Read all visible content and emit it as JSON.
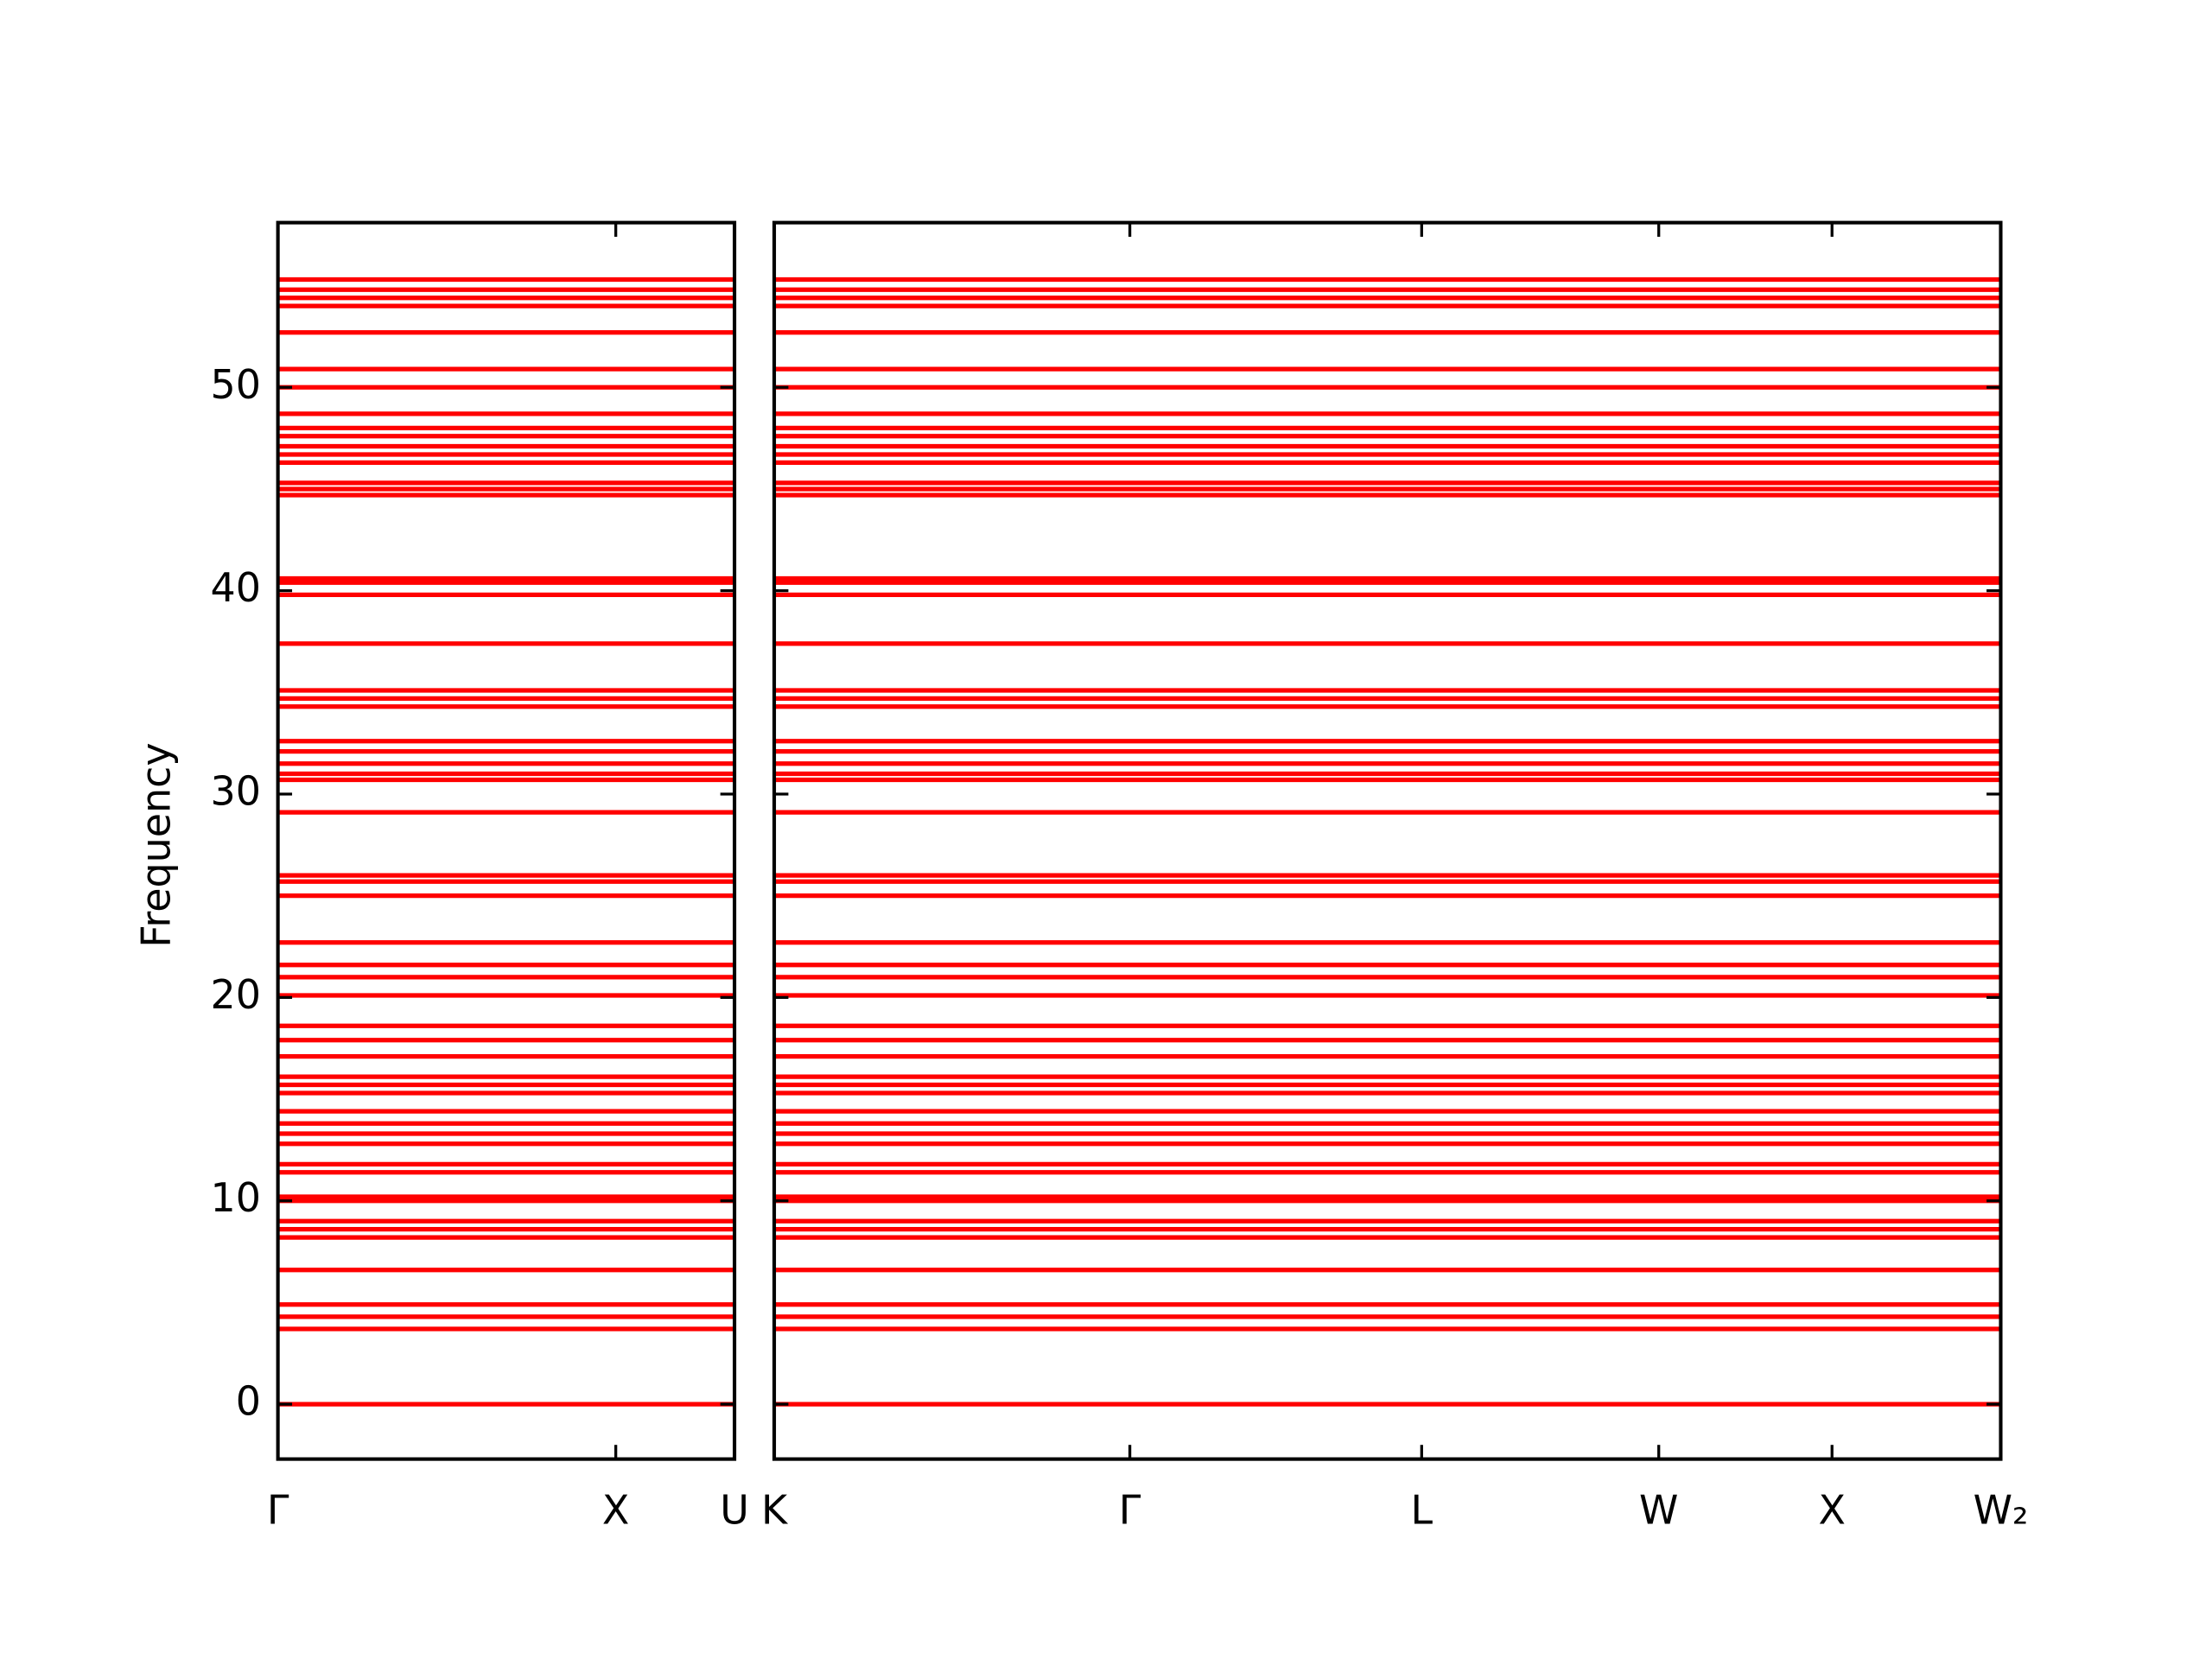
{
  "chart_data": {
    "type": "band_structure",
    "ylabel": "Frequency",
    "color": "#ff0000",
    "ylim": [
      -2.7,
      58.1
    ],
    "yticks": [
      0,
      10,
      20,
      30,
      40,
      50
    ],
    "values": [
      0,
      3.7,
      4.3,
      4.9,
      6.6,
      8.2,
      8.6,
      9.0,
      10.0,
      10.2,
      11.4,
      11.8,
      12.8,
      13.3,
      13.8,
      14.4,
      15.3,
      15.7,
      16.1,
      17.1,
      17.9,
      18.6,
      20.1,
      21.0,
      21.6,
      22.7,
      25.0,
      25.7,
      26.0,
      29.1,
      30.7,
      31.0,
      31.5,
      32.1,
      32.6,
      34.3,
      34.7,
      35.1,
      37.4,
      39.8,
      40.4,
      40.6,
      44.7,
      45.0,
      45.3,
      46.3,
      46.7,
      47.1,
      47.6,
      48.0,
      48.7,
      50.0,
      50.9,
      52.7,
      54.0,
      54.4,
      54.8,
      55.3
    ],
    "panels": [
      {
        "xlim": [
          0,
          1.0
        ],
        "xticks": [
          {
            "value": 0,
            "label": "Γ"
          },
          {
            "value": 0.74,
            "label": "X"
          },
          {
            "value": 1.0,
            "label": "U"
          }
        ]
      },
      {
        "xlim": [
          0,
          2.69
        ],
        "xticks": [
          {
            "value": 0,
            "label": "K"
          },
          {
            "value": 0.78,
            "label": "Γ"
          },
          {
            "value": 1.42,
            "label": "L"
          },
          {
            "value": 1.94,
            "label": "W"
          },
          {
            "value": 2.32,
            "label": "X"
          },
          {
            "value": 2.69,
            "label": "W₂"
          }
        ]
      }
    ]
  }
}
